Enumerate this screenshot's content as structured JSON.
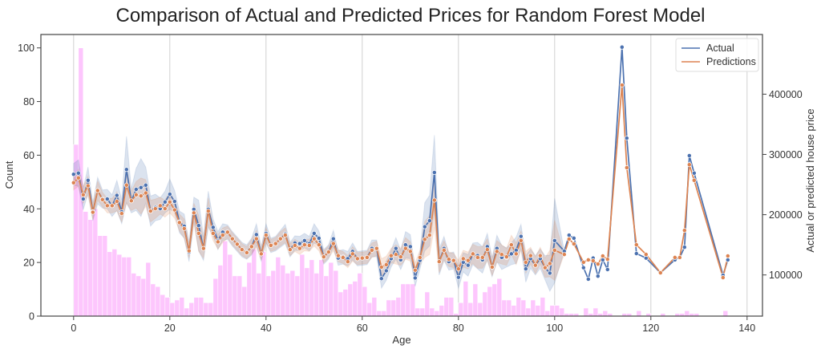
{
  "chart_data": {
    "type": "bar+line",
    "title": "Comparison of Actual and Predicted Prices for Random Forest Model",
    "xlabel": "Age",
    "ylabel_left": "Count",
    "ylabel_right": "Actual or predicted house price",
    "xlim": [
      -6.8,
      143.2
    ],
    "ylim_left": [
      0,
      105
    ],
    "ylim_right": [
      31700,
      499000
    ],
    "x_ticks": [
      0,
      20,
      40,
      60,
      80,
      100,
      120,
      140
    ],
    "y_ticks_left": [
      0,
      20,
      40,
      60,
      80,
      100
    ],
    "y_ticks_right": [
      100000,
      200000,
      300000,
      400000
    ],
    "grid": "vertical",
    "legend_placement": "top-right",
    "colors": {
      "histogram": "#fdc6fd",
      "actual": "#4c72b0",
      "predictions": "#dd8452",
      "grid": "#d0d0d0"
    },
    "histogram": {
      "bin_width": 1,
      "counts": [
        64,
        100,
        39,
        36,
        40,
        30,
        30,
        24,
        25,
        23,
        22,
        22,
        16,
        15,
        14,
        20,
        12,
        11,
        8,
        7,
        5,
        6,
        7,
        3,
        5,
        7,
        7,
        5,
        5,
        14,
        19,
        28,
        23,
        15,
        15,
        11,
        20,
        25,
        16,
        24,
        15,
        17,
        22,
        19,
        16,
        17,
        15,
        23,
        18,
        21,
        16,
        21,
        15,
        20,
        17,
        9,
        10,
        12,
        13,
        16,
        11,
        5,
        7,
        2,
        2,
        6,
        6,
        7,
        12,
        12,
        12,
        3,
        3,
        9,
        3,
        2,
        4,
        7,
        7,
        1,
        5,
        13,
        5,
        12,
        5,
        9,
        11,
        12,
        14,
        6,
        6,
        4,
        7,
        6,
        3,
        6,
        4,
        7,
        2,
        4,
        4,
        3,
        1,
        1,
        1,
        0,
        3,
        1,
        3,
        1,
        2,
        1,
        0,
        0,
        1,
        1,
        0,
        2,
        0,
        1,
        0,
        0,
        1,
        0,
        0,
        1,
        1,
        2,
        1,
        1,
        0,
        0,
        0,
        0,
        0,
        2,
        0
      ]
    },
    "series": [
      {
        "name": "Actual",
        "x": [
          0,
          1,
          2,
          3,
          4,
          5,
          6,
          7,
          8,
          9,
          10,
          11,
          12,
          13,
          14,
          15,
          16,
          17,
          18,
          19,
          20,
          21,
          22,
          23,
          24,
          25,
          26,
          27,
          28,
          29,
          30,
          31,
          32,
          33,
          34,
          35,
          36,
          37,
          38,
          39,
          40,
          41,
          42,
          43,
          44,
          45,
          46,
          47,
          48,
          49,
          50,
          51,
          52,
          53,
          54,
          55,
          56,
          57,
          58,
          59,
          60,
          61,
          62,
          63,
          64,
          65,
          66,
          67,
          68,
          69,
          70,
          71,
          72,
          73,
          74,
          75,
          76,
          77,
          78,
          79,
          80,
          81,
          82,
          83,
          84,
          85,
          86,
          87,
          88,
          89,
          90,
          91,
          92,
          93,
          94,
          95,
          96,
          97,
          98,
          99,
          100,
          102,
          103,
          104,
          106,
          107,
          108,
          109,
          110,
          111,
          114,
          115,
          117,
          119,
          122,
          125,
          126,
          127,
          128,
          129,
          135,
          136
        ],
        "y": [
          267000,
          269000,
          226000,
          257000,
          205000,
          240000,
          226000,
          226000,
          215000,
          232000,
          205000,
          275000,
          223000,
          242000,
          245000,
          249000,
          206000,
          212000,
          210000,
          221000,
          234000,
          222000,
          188000,
          181000,
          138000,
          209000,
          182000,
          144000,
          209000,
          179000,
          157000,
          171000,
          171000,
          160000,
          151000,
          142000,
          138000,
          147000,
          167000,
          135000,
          169000,
          149000,
          152000,
          160000,
          168000,
          142000,
          153000,
          152000,
          157000,
          152000,
          169000,
          161000,
          130000,
          138000,
          160000,
          128000,
          130000,
          127000,
          139000,
          127000,
          128000,
          129000,
          144000,
          144000,
          94000,
          107000,
          127000,
          144000,
          125000,
          150000,
          147000,
          95000,
          124000,
          180000,
          190000,
          270000,
          122000,
          144000,
          122000,
          124000,
          96000,
          121000,
          116000,
          135000,
          132000,
          125000,
          147000,
          113000,
          144000,
          129000,
          129000,
          135000,
          141000,
          164000,
          110000,
          127000,
          116000,
          127000,
          112000,
          103000,
          157000,
          139500,
          166000,
          161000,
          112000,
          93000,
          128000,
          98000,
          125000,
          109000,
          478000,
          327000,
          135500,
          128000,
          103600,
          125000,
          129000,
          146000,
          298000,
          269000,
          99600,
          125000
        ],
        "ci_halfwidth": [
          18000,
          22000,
          18000,
          22000,
          15000,
          22000,
          15000,
          16000,
          18000,
          25000,
          20000,
          55000,
          20000,
          35000,
          48000,
          30000,
          25000,
          22000,
          18000,
          18000,
          25000,
          18000,
          18000,
          20000,
          16000,
          20000,
          42000,
          20000,
          30000,
          14000,
          15000,
          14000,
          12000,
          12000,
          12000,
          12000,
          12000,
          14000,
          18000,
          12000,
          16000,
          12000,
          12000,
          14000,
          16000,
          12000,
          12000,
          12000,
          12000,
          12000,
          16000,
          12000,
          12000,
          12000,
          14000,
          12000,
          12000,
          12000,
          14000,
          12000,
          12000,
          12000,
          14000,
          14000,
          16000,
          16000,
          14000,
          18000,
          16000,
          22000,
          20000,
          14000,
          14000,
          40000,
          42000,
          62000,
          22000,
          20000,
          14000,
          14000,
          18000,
          16000,
          18000,
          18000,
          22000,
          22000,
          22000,
          16000,
          22000,
          20000,
          16000,
          18000,
          22000,
          20000,
          22000,
          16000,
          16000,
          16000,
          20000,
          30000,
          70000,
          0,
          0,
          0,
          0,
          0,
          0,
          0,
          0,
          0,
          0,
          0,
          0,
          0,
          0,
          0,
          0,
          0,
          0,
          0,
          0,
          0
        ]
      },
      {
        "name": "Predictions",
        "x": [
          0,
          1,
          2,
          3,
          4,
          5,
          6,
          7,
          8,
          9,
          10,
          11,
          12,
          13,
          14,
          15,
          16,
          17,
          18,
          19,
          20,
          21,
          22,
          23,
          24,
          25,
          26,
          27,
          28,
          29,
          30,
          31,
          32,
          33,
          34,
          35,
          36,
          37,
          38,
          39,
          40,
          41,
          42,
          43,
          44,
          45,
          46,
          47,
          48,
          49,
          50,
          51,
          52,
          53,
          54,
          55,
          56,
          57,
          58,
          59,
          60,
          61,
          62,
          63,
          64,
          65,
          66,
          67,
          68,
          69,
          70,
          71,
          72,
          73,
          74,
          75,
          76,
          77,
          78,
          79,
          80,
          81,
          82,
          83,
          84,
          85,
          86,
          87,
          88,
          89,
          90,
          91,
          92,
          93,
          94,
          95,
          96,
          97,
          98,
          99,
          100,
          102,
          103,
          104,
          106,
          107,
          108,
          109,
          110,
          111,
          114,
          115,
          117,
          119,
          122,
          125,
          126,
          127,
          128,
          129,
          135,
          136
        ],
        "y": [
          253000,
          261000,
          233000,
          248000,
          204000,
          240000,
          225000,
          215000,
          215000,
          222000,
          202000,
          249000,
          223000,
          233000,
          231000,
          236000,
          206000,
          210000,
          215000,
          210000,
          221000,
          208000,
          187000,
          177000,
          140000,
          203000,
          169000,
          144000,
          206000,
          169000,
          155000,
          166000,
          171000,
          160000,
          151000,
          142000,
          137000,
          147000,
          160000,
          135000,
          166000,
          149000,
          152000,
          160000,
          166000,
          142000,
          149000,
          144000,
          150000,
          149000,
          160000,
          150000,
          130000,
          138000,
          152000,
          132000,
          129000,
          122000,
          135000,
          127000,
          128000,
          129000,
          141000,
          144000,
          113000,
          117000,
          132000,
          134000,
          130000,
          144000,
          139000,
          108000,
          129000,
          159000,
          166000,
          224000,
          122000,
          141000,
          126000,
          124000,
          110000,
          127000,
          124000,
          135000,
          129000,
          129000,
          142000,
          113000,
          139000,
          134000,
          130000,
          150000,
          135000,
          157000,
          121000,
          132000,
          116000,
          132000,
          112000,
          119000,
          141000,
          134000,
          159500,
          151500,
          121000,
          125000,
          123600,
          118000,
          131500,
          126000,
          415000,
          278000,
          150000,
          134000,
          103600,
          129000,
          129000,
          174000,
          283000,
          257000,
          95600,
          131500
        ],
        "ci_halfwidth": [
          12000,
          14000,
          14000,
          16000,
          12000,
          16000,
          12000,
          12000,
          12000,
          16000,
          14000,
          30000,
          16000,
          22000,
          30000,
          22000,
          18000,
          16000,
          14000,
          14000,
          18000,
          14000,
          14000,
          16000,
          12000,
          16000,
          30000,
          16000,
          22000,
          12000,
          12000,
          12000,
          10000,
          10000,
          10000,
          10000,
          10000,
          12000,
          14000,
          10000,
          12000,
          10000,
          10000,
          12000,
          12000,
          10000,
          10000,
          10000,
          10000,
          10000,
          12000,
          10000,
          10000,
          10000,
          12000,
          10000,
          10000,
          10000,
          12000,
          10000,
          10000,
          10000,
          12000,
          12000,
          14000,
          14000,
          12000,
          16000,
          14000,
          18000,
          16000,
          12000,
          12000,
          30000,
          32000,
          45000,
          18000,
          16000,
          12000,
          12000,
          14000,
          14000,
          14000,
          16000,
          18000,
          18000,
          18000,
          14000,
          18000,
          16000,
          14000,
          16000,
          18000,
          16000,
          18000,
          14000,
          14000,
          14000,
          16000,
          22000,
          50000,
          0,
          0,
          0,
          0,
          0,
          0,
          0,
          0,
          0,
          0,
          0,
          0,
          0,
          0,
          0,
          0,
          0,
          0,
          0,
          0,
          0
        ]
      }
    ]
  }
}
